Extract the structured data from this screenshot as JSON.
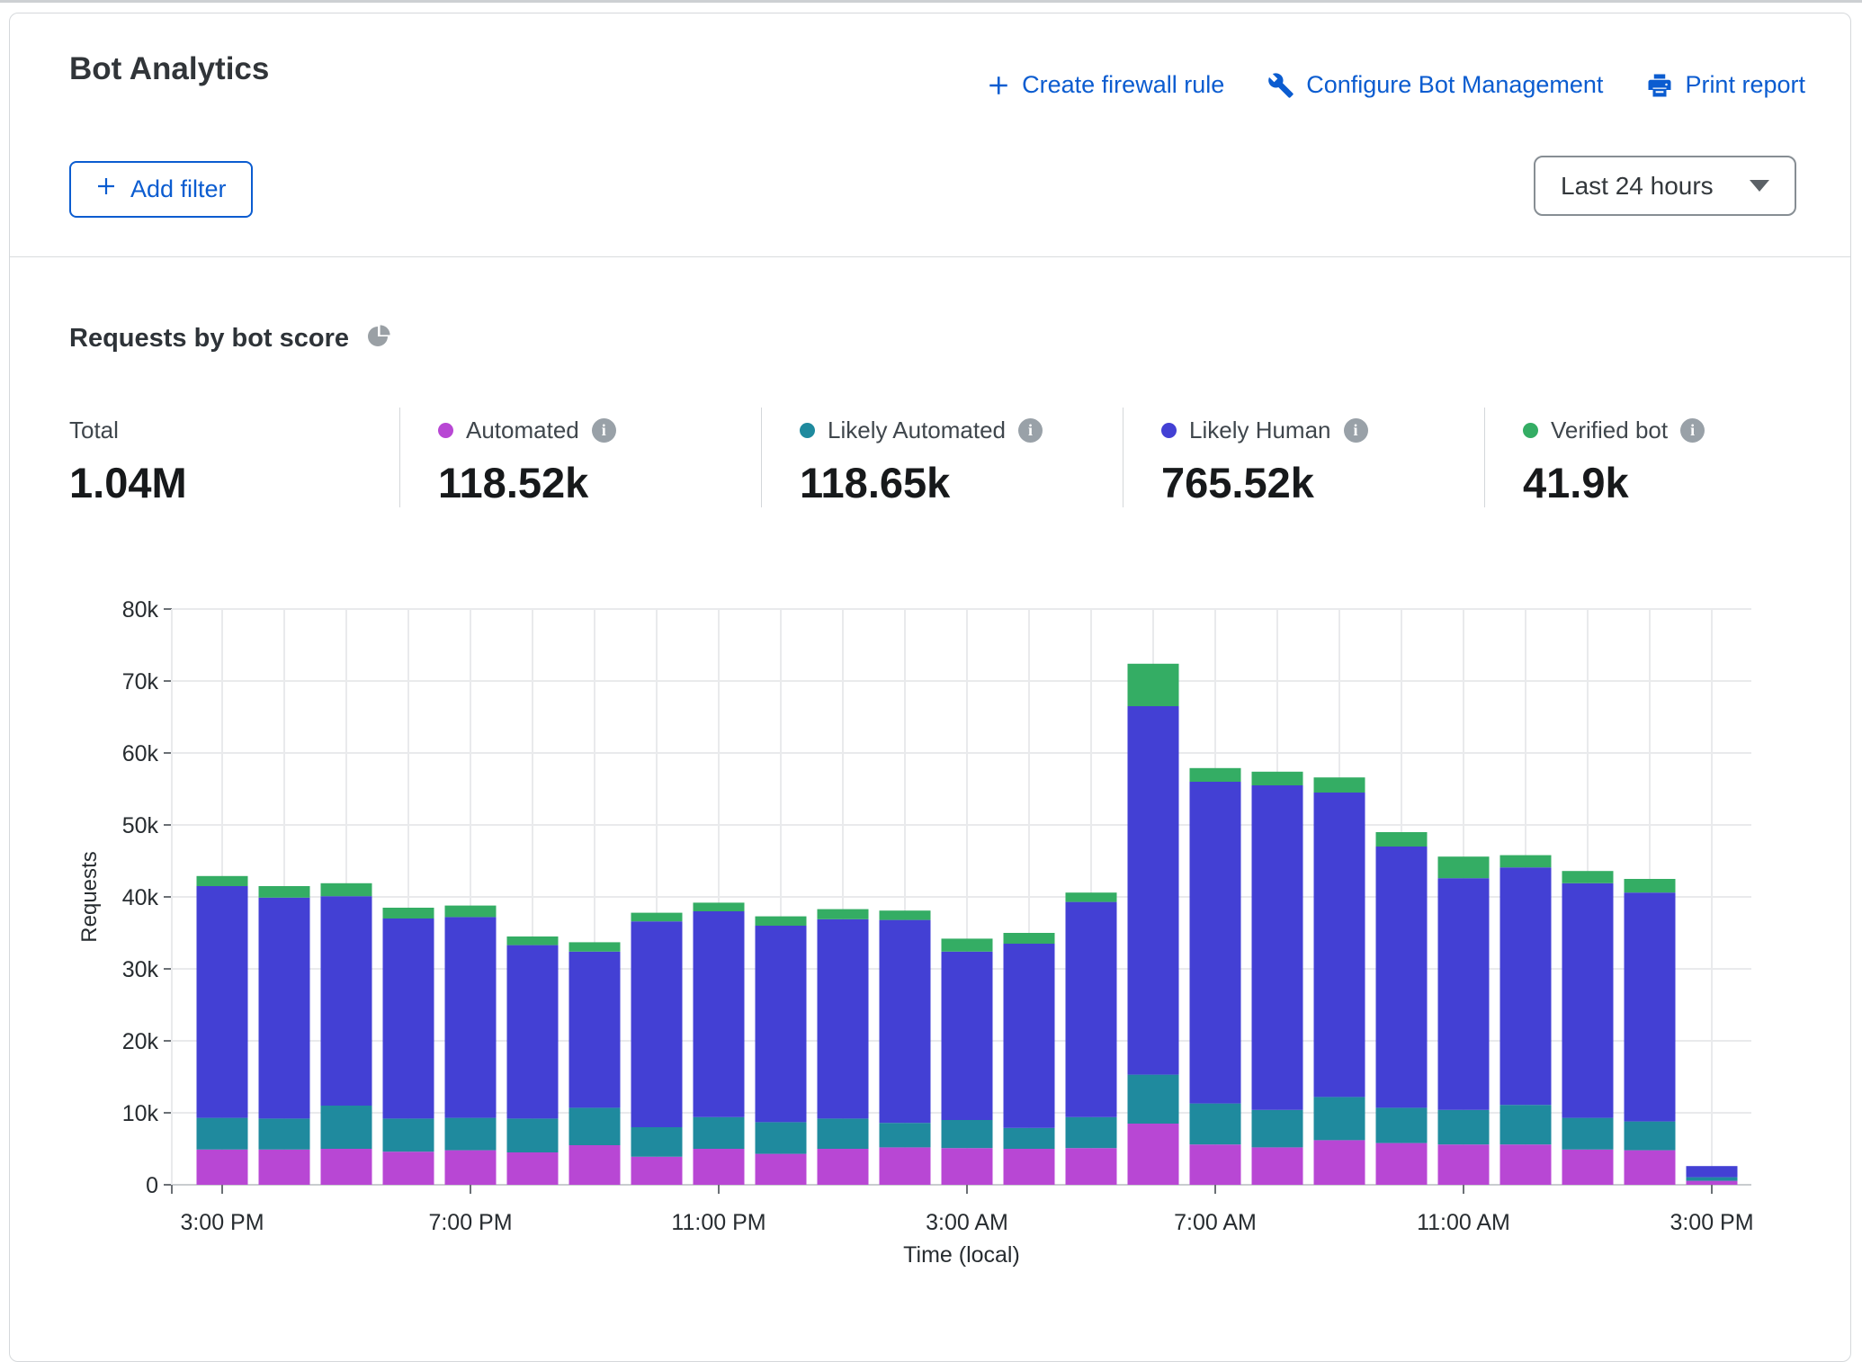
{
  "header": {
    "title": "Bot Analytics",
    "actions": [
      {
        "label": "Create firewall rule"
      },
      {
        "label": "Configure Bot Management"
      },
      {
        "label": "Print report"
      }
    ],
    "add_filter": "Add filter",
    "time_range": "Last 24 hours"
  },
  "section_title": "Requests by bot score",
  "stats": {
    "total_label": "Total",
    "total_value": "1.04M",
    "categories": [
      {
        "label": "Automated",
        "value": "118.52k",
        "color": "#b847d4"
      },
      {
        "label": "Likely Automated",
        "value": "118.65k",
        "color": "#1f8a9e"
      },
      {
        "label": "Likely Human",
        "value": "765.52k",
        "color": "#4340d4"
      },
      {
        "label": "Verified bot",
        "value": "41.9k",
        "color": "#34ad64"
      }
    ]
  },
  "chart_data": {
    "type": "bar",
    "stacked": true,
    "title": "Requests by bot score",
    "xlabel": "Time (local)",
    "ylabel": "Requests",
    "ylim": [
      0,
      80000
    ],
    "ytick_step": 10000,
    "grid": true,
    "legend_position": "top",
    "x": [
      "3:00 PM",
      "4:00 PM",
      "5:00 PM",
      "6:00 PM",
      "7:00 PM",
      "8:00 PM",
      "9:00 PM",
      "10:00 PM",
      "11:00 PM",
      "12:00 AM",
      "1:00 AM",
      "2:00 AM",
      "3:00 AM",
      "4:00 AM",
      "5:00 AM",
      "6:00 AM",
      "7:00 AM",
      "8:00 AM",
      "9:00 AM",
      "10:00 AM",
      "11:00 AM",
      "12:00 PM",
      "1:00 PM",
      "2:00 PM",
      "3:00 PM"
    ],
    "x_tick_indices": [
      0,
      4,
      8,
      12,
      16,
      20,
      24
    ],
    "series": [
      {
        "name": "Automated",
        "color": "#b847d4",
        "values": [
          4900,
          4900,
          5000,
          4600,
          4800,
          4500,
          5500,
          3900,
          5000,
          4300,
          5000,
          5200,
          5100,
          5000,
          5100,
          8500,
          5600,
          5200,
          6200,
          5800,
          5600,
          5600,
          4900,
          4800,
          550
        ]
      },
      {
        "name": "Likely Automated",
        "color": "#1f8a9e",
        "values": [
          4400,
          4300,
          6000,
          4600,
          4500,
          4700,
          5200,
          4100,
          4400,
          4400,
          4200,
          3400,
          3900,
          2900,
          4300,
          6800,
          5700,
          5200,
          6000,
          4900,
          4800,
          5500,
          4400,
          4000,
          500
        ]
      },
      {
        "name": "Likely Human",
        "color": "#4340d4",
        "values": [
          32200,
          30700,
          29100,
          27800,
          27900,
          24100,
          21700,
          28600,
          28600,
          27300,
          27700,
          28200,
          23400,
          25600,
          29900,
          51200,
          44700,
          45100,
          42300,
          36300,
          32200,
          33000,
          32600,
          31800,
          1550
        ]
      },
      {
        "name": "Verified bot",
        "color": "#34ad64",
        "values": [
          1400,
          1600,
          1800,
          1500,
          1600,
          1200,
          1300,
          1200,
          1200,
          1300,
          1400,
          1300,
          1800,
          1500,
          1300,
          5900,
          1900,
          1900,
          2100,
          2000,
          3000,
          1700,
          1700,
          1900,
          0
        ]
      }
    ]
  }
}
